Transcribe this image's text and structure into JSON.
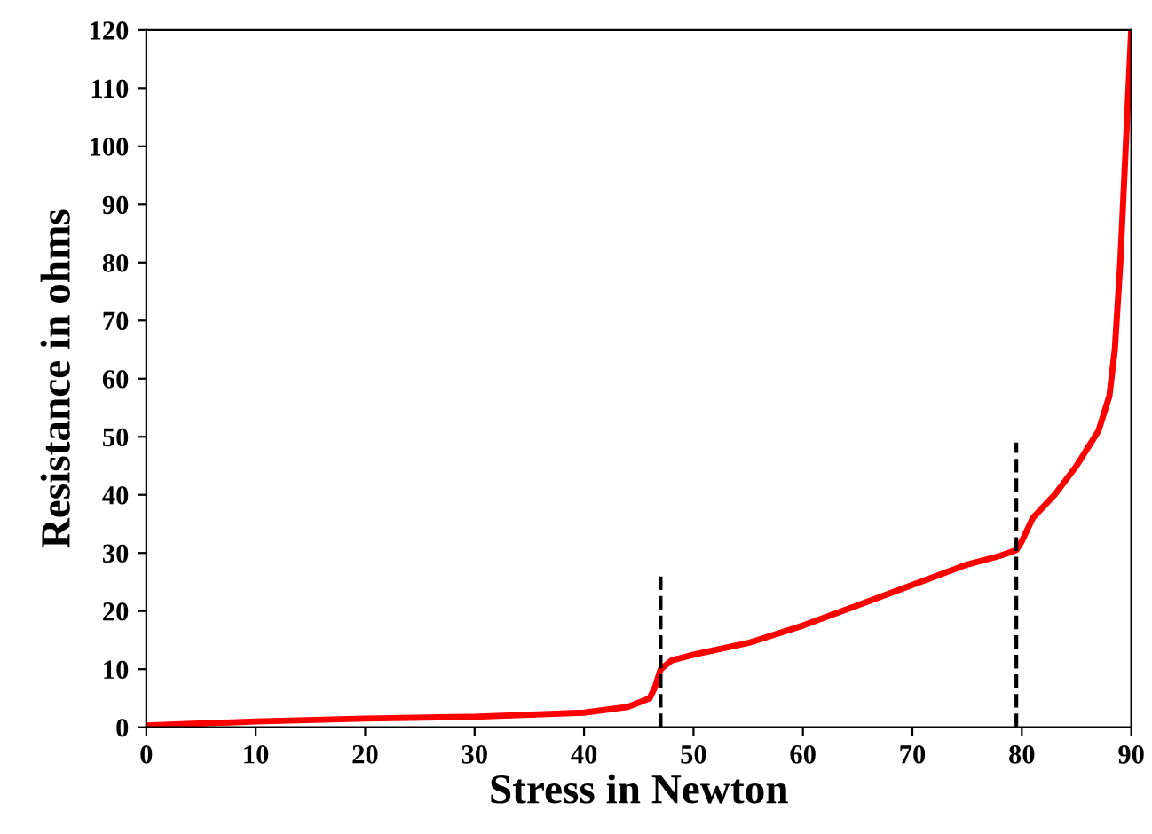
{
  "chart_data": {
    "type": "line",
    "xlabel": "Stress in Newton",
    "ylabel": "Resistance in ohms",
    "xlim": [
      0,
      90
    ],
    "ylim": [
      0,
      120
    ],
    "xticks": [
      0,
      10,
      20,
      30,
      40,
      50,
      60,
      70,
      80,
      90
    ],
    "yticks": [
      0,
      10,
      20,
      30,
      40,
      50,
      60,
      70,
      80,
      90,
      100,
      110,
      120
    ],
    "grid": false,
    "legend": false,
    "marker": "none",
    "series": [
      {
        "color": "#ff0000",
        "line_style": "solid",
        "x": [
          0,
          10,
          20,
          30,
          40,
          44,
          46,
          46.5,
          47,
          48,
          50,
          55,
          60,
          65,
          70,
          75,
          78,
          79.5,
          80,
          81,
          83,
          85,
          87,
          88,
          88.5,
          89,
          89.5,
          90
        ],
        "values": [
          0.3,
          1,
          1.5,
          1.8,
          2.5,
          3.5,
          5,
          7,
          10,
          11.5,
          12.5,
          14.5,
          17.5,
          21,
          24.5,
          28,
          29.5,
          30.5,
          32,
          36,
          40,
          45,
          51,
          57,
          65,
          80,
          100,
          120
        ]
      },
      {
        "color": "#000000",
        "line_style": "dashed",
        "x": [
          47,
          47
        ],
        "values": [
          0,
          26
        ]
      },
      {
        "color": "#000000",
        "line_style": "dashed",
        "x": [
          79.5,
          79.5
        ],
        "values": [
          0,
          49
        ]
      }
    ]
  }
}
